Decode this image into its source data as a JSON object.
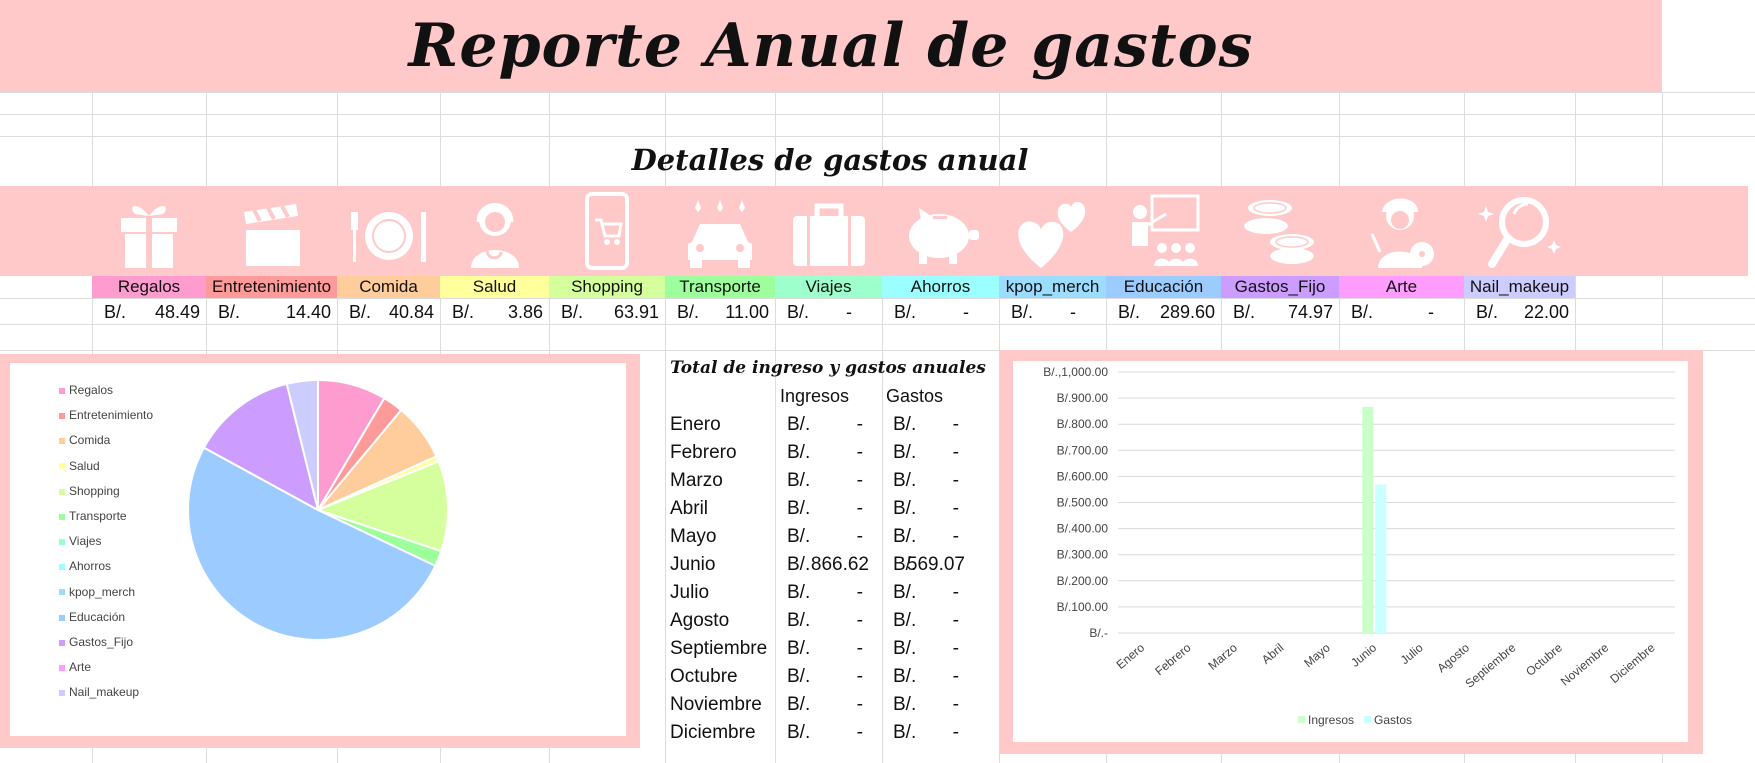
{
  "title": "Reporte Anual de gastos",
  "subtitle": "Detalles de gastos anual",
  "currency": "B/.",
  "categories": [
    {
      "label": "Regalos",
      "value": "48.49",
      "color": "#ff9ccf",
      "icon": "gift-icon"
    },
    {
      "label": "Entretenimiento",
      "value": "14.40",
      "color": "#ff9a9a",
      "icon": "clapperboard-icon"
    },
    {
      "label": "Comida",
      "value": "40.84",
      "color": "#ffcc9c",
      "icon": "plate-icon"
    },
    {
      "label": "Salud",
      "value": "3.86",
      "color": "#ffff9c",
      "icon": "doctor-icon"
    },
    {
      "label": "Shopping",
      "value": "63.91",
      "color": "#d5ff9c",
      "icon": "phone-cart-icon"
    },
    {
      "label": "Transporte",
      "value": "11.00",
      "color": "#9cff9c",
      "icon": "car-icon"
    },
    {
      "label": "Viajes",
      "value": "-",
      "color": "#9cffcc",
      "icon": "suitcase-icon"
    },
    {
      "label": "Ahorros",
      "value": "-",
      "color": "#9cffff",
      "icon": "piggy-bank-icon"
    },
    {
      "label": "kpop_merch",
      "value": "-",
      "color": "#9cddff",
      "icon": "hearts-icon"
    },
    {
      "label": "Educación",
      "value": "289.60",
      "color": "#9cccff",
      "icon": "teacher-icon"
    },
    {
      "label": "Gastos_Fijo",
      "value": "74.97",
      "color": "#cc9cff",
      "icon": "coins-icon"
    },
    {
      "label": "Arte",
      "value": "-",
      "color": "#ff9cff",
      "icon": "artist-icon"
    },
    {
      "label": "Nail_makeup",
      "value": "22.00",
      "color": "#ccccff",
      "icon": "mirror-icon"
    }
  ],
  "table": {
    "title": "Total de ingreso y gastos anuales",
    "col_income": "Ingresos",
    "col_expense": "Gastos",
    "rows": [
      {
        "month": "Enero",
        "income": "-",
        "expense": "-"
      },
      {
        "month": "Febrero",
        "income": "-",
        "expense": "-"
      },
      {
        "month": "Marzo",
        "income": "-",
        "expense": "-"
      },
      {
        "month": "Abril",
        "income": "-",
        "expense": "-"
      },
      {
        "month": "Mayo",
        "income": "-",
        "expense": "-"
      },
      {
        "month": "Junio",
        "income": "866.62",
        "expense": "569.07"
      },
      {
        "month": "Julio",
        "income": "-",
        "expense": "-"
      },
      {
        "month": "Agosto",
        "income": "-",
        "expense": "-"
      },
      {
        "month": "Septiembre",
        "income": "-",
        "expense": "-"
      },
      {
        "month": "Octubre",
        "income": "-",
        "expense": "-"
      },
      {
        "month": "Noviembre",
        "income": "-",
        "expense": "-"
      },
      {
        "month": "Diciembre",
        "income": "-",
        "expense": "-"
      }
    ]
  },
  "colors": {
    "banner": "#ffc9c9",
    "income": "#c9ffc9",
    "expense": "#c9ffff"
  },
  "chart_data": [
    {
      "type": "pie",
      "categories": [
        "Regalos",
        "Entretenimiento",
        "Comida",
        "Salud",
        "Shopping",
        "Transporte",
        "Viajes",
        "Ahorros",
        "kpop_merch",
        "Educación",
        "Gastos_Fijo",
        "Arte",
        "Nail_makeup"
      ],
      "values": [
        48.49,
        14.4,
        40.84,
        3.86,
        63.91,
        11.0,
        0,
        0,
        0,
        289.6,
        74.97,
        0,
        22.0
      ],
      "colors": [
        "#ff9ccf",
        "#ff9a9a",
        "#ffcc9c",
        "#ffff9c",
        "#d5ff9c",
        "#9cff9c",
        "#9cffcc",
        "#9cffff",
        "#9cddff",
        "#9cccff",
        "#cc9cff",
        "#ff9cff",
        "#ccccff"
      ],
      "legend": "left"
    },
    {
      "type": "bar",
      "categories": [
        "Enero",
        "Febrero",
        "Marzo",
        "Abril",
        "Mayo",
        "Junio",
        "Julio",
        "Agosto",
        "Septiembre",
        "Octubre",
        "Noviembre",
        "Diciembre"
      ],
      "series": [
        {
          "name": "Ingresos",
          "values": [
            0,
            0,
            0,
            0,
            0,
            866.62,
            0,
            0,
            0,
            0,
            0,
            0
          ],
          "color": "#c9ffc9"
        },
        {
          "name": "Gastos",
          "values": [
            0,
            0,
            0,
            0,
            0,
            569.07,
            0,
            0,
            0,
            0,
            0,
            0
          ],
          "color": "#c9ffff"
        }
      ],
      "ytick_labels": [
        "B/.-",
        "B/.100.00",
        "B/.200.00",
        "B/.300.00",
        "B/.400.00",
        "B/.500.00",
        "B/.600.00",
        "B/.700.00",
        "B/.800.00",
        "B/.900.00",
        "B/.,1,000.00"
      ],
      "ylim": [
        0,
        1000
      ],
      "grid": true,
      "legend": "bottom"
    }
  ]
}
